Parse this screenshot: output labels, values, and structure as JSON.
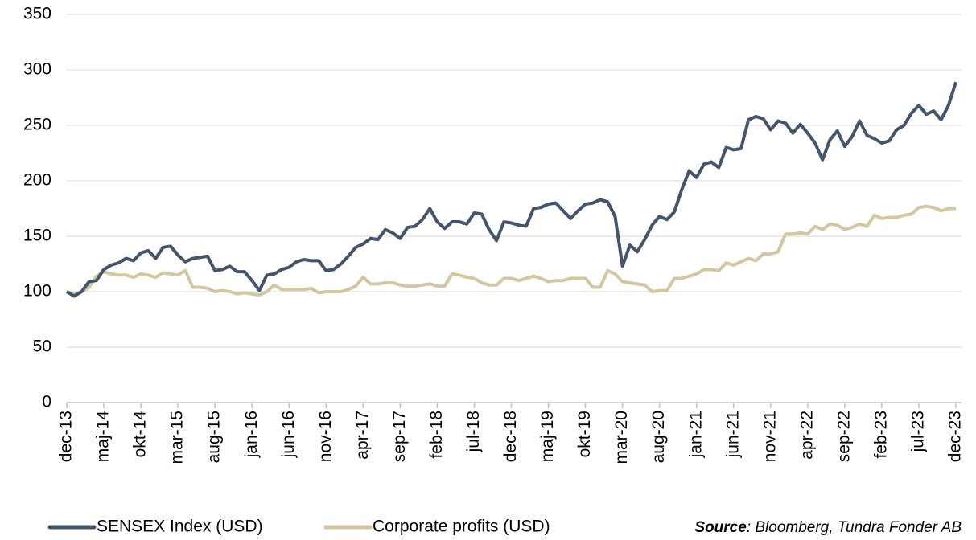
{
  "chart_data": {
    "type": "line",
    "categories": [
      "dec-13",
      null,
      null,
      null,
      null,
      "maj-14",
      null,
      null,
      null,
      null,
      "okt-14",
      null,
      null,
      null,
      null,
      "mar-15",
      null,
      null,
      null,
      null,
      "aug-15",
      null,
      null,
      null,
      null,
      "jan-16",
      null,
      null,
      null,
      null,
      "jun-16",
      null,
      null,
      null,
      null,
      "nov-16",
      null,
      null,
      null,
      null,
      "apr-17",
      null,
      null,
      null,
      null,
      "sep-17",
      null,
      null,
      null,
      null,
      "feb-18",
      null,
      null,
      null,
      null,
      "jul-18",
      null,
      null,
      null,
      null,
      "dec-18",
      null,
      null,
      null,
      null,
      "maj-19",
      null,
      null,
      null,
      null,
      "okt-19",
      null,
      null,
      null,
      null,
      "mar-20",
      null,
      null,
      null,
      null,
      "aug-20",
      null,
      null,
      null,
      null,
      "jan-21",
      null,
      null,
      null,
      null,
      "jun-21",
      null,
      null,
      null,
      null,
      "nov-21",
      null,
      null,
      null,
      null,
      "apr-22",
      null,
      null,
      null,
      null,
      "sep-22",
      null,
      null,
      null,
      null,
      "feb-23",
      null,
      null,
      null,
      null,
      "jul-23",
      null,
      null,
      null,
      null,
      "dec-23"
    ],
    "series": [
      {
        "name": "SENSEX Index (USD)",
        "color": "#44546a",
        "values": [
          100,
          96,
          100,
          109,
          110,
          120,
          124,
          126,
          130,
          128,
          135,
          137,
          130,
          140,
          141,
          133,
          127,
          130,
          131,
          132,
          119,
          120,
          123,
          118,
          118,
          110,
          101,
          115,
          116,
          120,
          122,
          127,
          129,
          128,
          128,
          119,
          120,
          125,
          132,
          140,
          143,
          148,
          147,
          156,
          153,
          148,
          158,
          159,
          165,
          175,
          163,
          157,
          163,
          163,
          161,
          171,
          170,
          156,
          146,
          163,
          162,
          160,
          159,
          175,
          176,
          179,
          180,
          173,
          166,
          173,
          179,
          180,
          183,
          181,
          168,
          123,
          142,
          136,
          147,
          160,
          168,
          165,
          172,
          192,
          209,
          203,
          215,
          217,
          212,
          230,
          228,
          229,
          255,
          258,
          256,
          246,
          254,
          252,
          243,
          251,
          243,
          234,
          219,
          237,
          245,
          231,
          240,
          254,
          241,
          238,
          234,
          236,
          246,
          250,
          261,
          268,
          260,
          263,
          255,
          268,
          289
        ]
      },
      {
        "name": "Corporate profits (USD)",
        "color": "#d3c7a2",
        "values": [
          100,
          98,
          100,
          104,
          114,
          118,
          116,
          115,
          115,
          113,
          116,
          115,
          113,
          117,
          116,
          115,
          119,
          104,
          104,
          103,
          100,
          101,
          100,
          98,
          99,
          98,
          97,
          100,
          106,
          102,
          102,
          102,
          102,
          103,
          99,
          100,
          100,
          100,
          102,
          105,
          113,
          107,
          107,
          108,
          108,
          106,
          105,
          105,
          106,
          107,
          105,
          105,
          116,
          115,
          113,
          112,
          108,
          106,
          106,
          112,
          112,
          110,
          112,
          114,
          112,
          109,
          110,
          110,
          112,
          112,
          112,
          104,
          104,
          119,
          116,
          109,
          108,
          107,
          106,
          100,
          101,
          101,
          112,
          112,
          114,
          116,
          120,
          120,
          119,
          126,
          124,
          127,
          130,
          128,
          134,
          134,
          136,
          152,
          152,
          153,
          152,
          159,
          156,
          161,
          160,
          156,
          158,
          161,
          159,
          169,
          166,
          167,
          167,
          169,
          170,
          176,
          177,
          176,
          173,
          175,
          175
        ]
      }
    ],
    "ylim": [
      0,
      350
    ],
    "yticks": [
      0,
      50,
      100,
      150,
      200,
      250,
      300,
      350
    ],
    "grid": true,
    "source_label": "Source",
    "source_text": ": Bloomberg, Tundra Fonder AB"
  }
}
